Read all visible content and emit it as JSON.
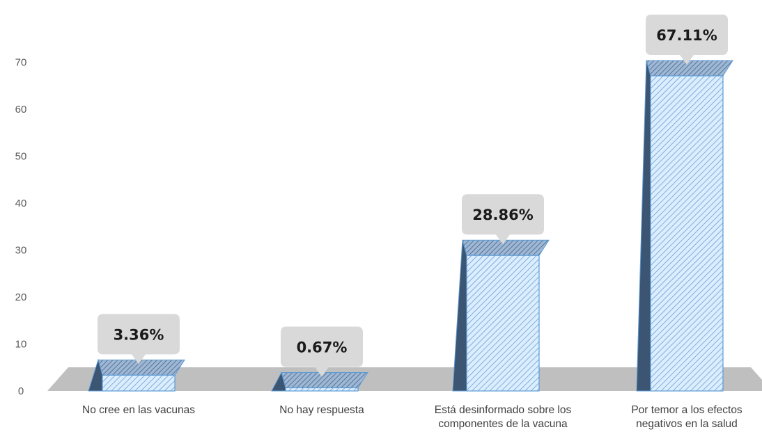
{
  "chart_data": {
    "type": "bar",
    "categories": [
      [
        "No cree en las vacunas"
      ],
      [
        "No hay respuesta"
      ],
      [
        "Está desinformado sobre los",
        "componentes de la vacuna"
      ],
      [
        "Por temor a los efectos",
        "negativos en la salud"
      ]
    ],
    "values": [
      3.36,
      0.67,
      28.86,
      67.11
    ],
    "data_labels": [
      "3.36%",
      "0.67%",
      "28.86%",
      "67.11%"
    ],
    "y_ticks": [
      0,
      10,
      20,
      30,
      40,
      50,
      60,
      70
    ],
    "ylim": [
      0,
      70
    ],
    "grid": false,
    "title": "",
    "xlabel": "",
    "ylabel": "",
    "colors": {
      "bar_front": "#dbeeff",
      "bar_hatch": "#6d9ccf",
      "bar_top": "#9fb7d3",
      "bar_top_hatch": "#4a6d97",
      "bar_side": "#3b5573",
      "bar_border": "#5b9bd5",
      "floor": "#bfbfbf",
      "callout": "#d9d9d9"
    }
  }
}
